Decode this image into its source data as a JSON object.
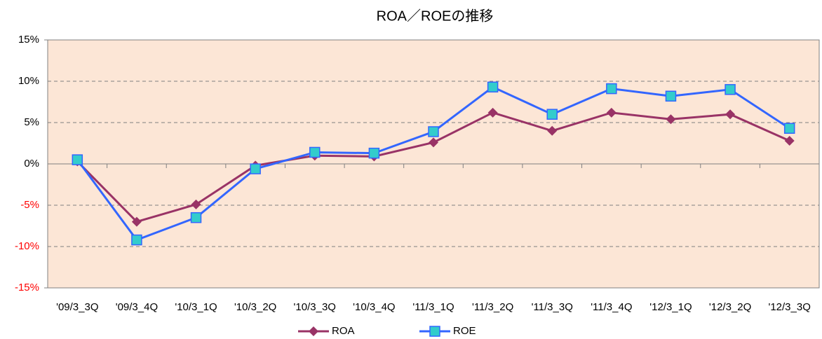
{
  "chart_data": {
    "type": "line",
    "title": "ROA／ROEの推移",
    "categories": [
      "'09/3_3Q",
      "'09/3_4Q",
      "'10/3_1Q",
      "'10/3_2Q",
      "'10/3_3Q",
      "'10/3_4Q",
      "'11/3_1Q",
      "'11/3_2Q",
      "'11/3_3Q",
      "'11/3_4Q",
      "'12/3_1Q",
      "'12/3_2Q",
      "'12/3_3Q"
    ],
    "series": [
      {
        "name": "ROA",
        "color": "#993366",
        "marker": "diamond",
        "values": [
          0.3,
          -7.0,
          -4.9,
          -0.2,
          1.0,
          0.9,
          2.6,
          6.2,
          4.0,
          6.2,
          5.4,
          6.0,
          2.8
        ]
      },
      {
        "name": "ROE",
        "color": "#3366ff",
        "marker_fill": "#33cccc",
        "marker": "square",
        "values": [
          0.5,
          -9.2,
          -6.5,
          -0.6,
          1.4,
          1.3,
          3.9,
          9.3,
          6.0,
          9.1,
          8.2,
          9.0,
          4.3
        ]
      }
    ],
    "ylim": [
      -15,
      15
    ],
    "yticks": [
      {
        "value": -15,
        "label": "-15%"
      },
      {
        "value": -10,
        "label": "-10%"
      },
      {
        "value": -5,
        "label": "-5%"
      },
      {
        "value": 0,
        "label": "0%"
      },
      {
        "value": 5,
        "label": "5%"
      },
      {
        "value": 10,
        "label": "10%"
      },
      {
        "value": 15,
        "label": "15%"
      }
    ],
    "grid": true,
    "legend": "bottom",
    "plot_background": "#fce6d6"
  }
}
